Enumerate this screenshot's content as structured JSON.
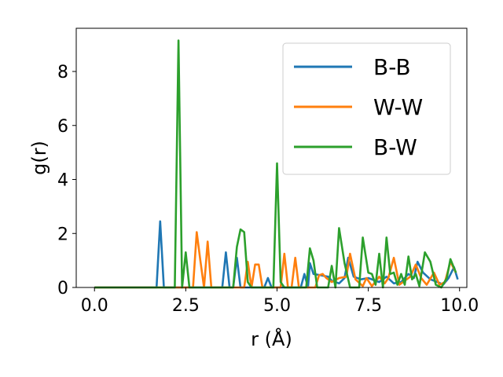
{
  "chart_data": {
    "type": "line",
    "xlabel": "r (Å)",
    "ylabel": "g(r)",
    "xlim": [
      -0.5,
      10.2
    ],
    "ylim": [
      0,
      9.6
    ],
    "xticks": [
      0.0,
      2.5,
      5.0,
      7.5,
      10.0
    ],
    "xtick_labels": [
      "0.0",
      "2.5",
      "5.0",
      "7.5",
      "10.0"
    ],
    "yticks": [
      0,
      2,
      4,
      6,
      8
    ],
    "ytick_labels": [
      "0",
      "2",
      "4",
      "6",
      "8"
    ],
    "grid": false,
    "legend": {
      "position": "top-right"
    },
    "series": [
      {
        "name": "B-B",
        "color": "#1f77b4",
        "points": [
          [
            0,
            0
          ],
          [
            1.7,
            0
          ],
          [
            1.8,
            2.45
          ],
          [
            1.9,
            0
          ],
          [
            3.5,
            0
          ],
          [
            3.6,
            1.3
          ],
          [
            3.7,
            0
          ],
          [
            3.8,
            0
          ],
          [
            3.9,
            1.1
          ],
          [
            4.0,
            0
          ],
          [
            4.65,
            0
          ],
          [
            4.75,
            0.35
          ],
          [
            4.85,
            0
          ],
          [
            5.65,
            0
          ],
          [
            5.75,
            0.5
          ],
          [
            5.85,
            0
          ],
          [
            5.9,
            0.9
          ],
          [
            6.0,
            0.5
          ],
          [
            6.2,
            0.45
          ],
          [
            6.4,
            0.4
          ],
          [
            6.5,
            0.25
          ],
          [
            6.7,
            0.15
          ],
          [
            6.85,
            0.35
          ],
          [
            6.95,
            1.1
          ],
          [
            7.1,
            0.4
          ],
          [
            7.3,
            0.3
          ],
          [
            7.5,
            0.35
          ],
          [
            7.8,
            0.2
          ],
          [
            8.0,
            0.4
          ],
          [
            8.2,
            0.15
          ],
          [
            8.4,
            0.2
          ],
          [
            8.6,
            0.5
          ],
          [
            8.75,
            0.35
          ],
          [
            8.85,
            0.95
          ],
          [
            9.0,
            0.55
          ],
          [
            9.2,
            0.3
          ],
          [
            9.4,
            0.2
          ],
          [
            9.55,
            0.1
          ],
          [
            9.7,
            0.35
          ],
          [
            9.85,
            0.75
          ],
          [
            9.95,
            0.3
          ]
        ]
      },
      {
        "name": "W-W",
        "color": "#ff7f0e",
        "points": [
          [
            0,
            0
          ],
          [
            2.7,
            0
          ],
          [
            2.8,
            2.05
          ],
          [
            2.9,
            1.0
          ],
          [
            3.0,
            0
          ],
          [
            3.1,
            1.7
          ],
          [
            3.2,
            0
          ],
          [
            4.1,
            0
          ],
          [
            4.2,
            0.95
          ],
          [
            4.3,
            0
          ],
          [
            4.4,
            0.85
          ],
          [
            4.5,
            0.85
          ],
          [
            4.6,
            0
          ],
          [
            5.1,
            0
          ],
          [
            5.2,
            1.25
          ],
          [
            5.3,
            0
          ],
          [
            5.4,
            0
          ],
          [
            5.5,
            1.1
          ],
          [
            5.6,
            0
          ],
          [
            6.05,
            0
          ],
          [
            6.15,
            0.45
          ],
          [
            6.25,
            0.5
          ],
          [
            6.35,
            0.35
          ],
          [
            6.5,
            0.2
          ],
          [
            6.7,
            0.35
          ],
          [
            6.9,
            0.4
          ],
          [
            7.0,
            1.25
          ],
          [
            7.15,
            0.3
          ],
          [
            7.35,
            0.05
          ],
          [
            7.45,
            0.35
          ],
          [
            7.6,
            0.05
          ],
          [
            7.8,
            0.4
          ],
          [
            7.95,
            0.15
          ],
          [
            8.05,
            0.35
          ],
          [
            8.2,
            1.1
          ],
          [
            8.35,
            0.1
          ],
          [
            8.5,
            0.25
          ],
          [
            8.65,
            0.4
          ],
          [
            8.8,
            0.85
          ],
          [
            8.95,
            0.35
          ],
          [
            9.1,
            0.1
          ],
          [
            9.3,
            0.55
          ],
          [
            9.45,
            0.1
          ],
          [
            9.6,
            0.2
          ],
          [
            9.75,
            0.95
          ],
          [
            9.9,
            0.55
          ]
        ]
      },
      {
        "name": "B-W",
        "color": "#2ca02c",
        "points": [
          [
            0,
            0
          ],
          [
            2.2,
            0
          ],
          [
            2.3,
            9.15
          ],
          [
            2.4,
            0
          ],
          [
            2.5,
            1.3
          ],
          [
            2.6,
            0
          ],
          [
            3.8,
            0
          ],
          [
            3.9,
            1.5
          ],
          [
            4.0,
            2.15
          ],
          [
            4.1,
            2.05
          ],
          [
            4.2,
            0.2
          ],
          [
            4.3,
            0
          ],
          [
            4.9,
            0
          ],
          [
            5.0,
            4.6
          ],
          [
            5.1,
            0.2
          ],
          [
            5.2,
            0
          ],
          [
            5.8,
            0
          ],
          [
            5.9,
            1.45
          ],
          [
            6.0,
            1.0
          ],
          [
            6.1,
            0
          ],
          [
            6.4,
            0
          ],
          [
            6.5,
            0.8
          ],
          [
            6.6,
            0
          ],
          [
            6.7,
            2.2
          ],
          [
            6.85,
            0.9
          ],
          [
            7.0,
            0
          ],
          [
            7.25,
            0
          ],
          [
            7.35,
            1.85
          ],
          [
            7.5,
            0.55
          ],
          [
            7.6,
            0.5
          ],
          [
            7.7,
            0.1
          ],
          [
            7.8,
            1.25
          ],
          [
            7.9,
            0
          ],
          [
            8.0,
            1.85
          ],
          [
            8.1,
            0.5
          ],
          [
            8.2,
            0.55
          ],
          [
            8.3,
            0.1
          ],
          [
            8.4,
            0.5
          ],
          [
            8.5,
            0.1
          ],
          [
            8.6,
            1.15
          ],
          [
            8.7,
            0.3
          ],
          [
            8.8,
            0.5
          ],
          [
            8.9,
            0.05
          ],
          [
            9.05,
            1.3
          ],
          [
            9.2,
            0.95
          ],
          [
            9.35,
            0.1
          ],
          [
            9.5,
            0
          ],
          [
            9.65,
            0.35
          ],
          [
            9.75,
            1.05
          ],
          [
            9.9,
            0.55
          ]
        ]
      }
    ]
  }
}
